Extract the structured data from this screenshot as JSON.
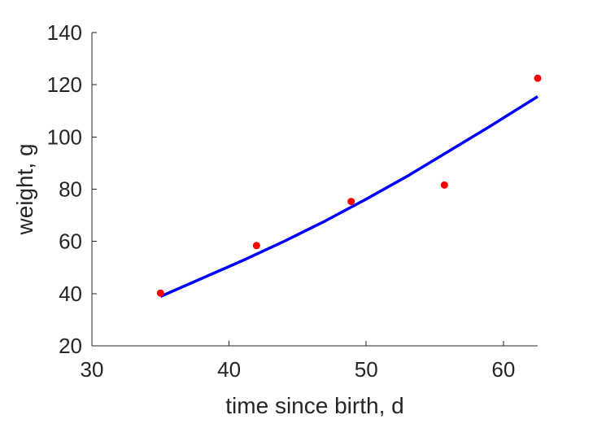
{
  "chart_data": {
    "type": "scatter",
    "xlabel": "time since birth, d",
    "ylabel": "weight, g",
    "xlim": [
      30,
      62.5
    ],
    "ylim": [
      20,
      140
    ],
    "xticks": [
      30,
      40,
      50,
      60
    ],
    "yticks": [
      20,
      40,
      60,
      80,
      100,
      120,
      140
    ],
    "xtick_labels": [
      "30",
      "40",
      "50",
      "60"
    ],
    "ytick_labels": [
      "20",
      "40",
      "60",
      "80",
      "100",
      "120",
      "140"
    ],
    "grid": false,
    "legend": "none",
    "series": [
      {
        "kind": "points",
        "color": "#ff0000",
        "x": [
          35.0,
          42.0,
          48.9,
          55.7,
          62.5
        ],
        "y": [
          40.2,
          58.4,
          75.3,
          81.6,
          122.5
        ]
      },
      {
        "kind": "line",
        "color": "#0000ff",
        "x": [
          35.0,
          38.0,
          41.0,
          44.0,
          47.0,
          50.0,
          53.0,
          56.0,
          59.0,
          62.5
        ],
        "y": [
          38.9,
          45.8,
          52.7,
          60.0,
          67.8,
          76.2,
          85.0,
          94.5,
          104.0,
          115.5
        ]
      }
    ]
  }
}
